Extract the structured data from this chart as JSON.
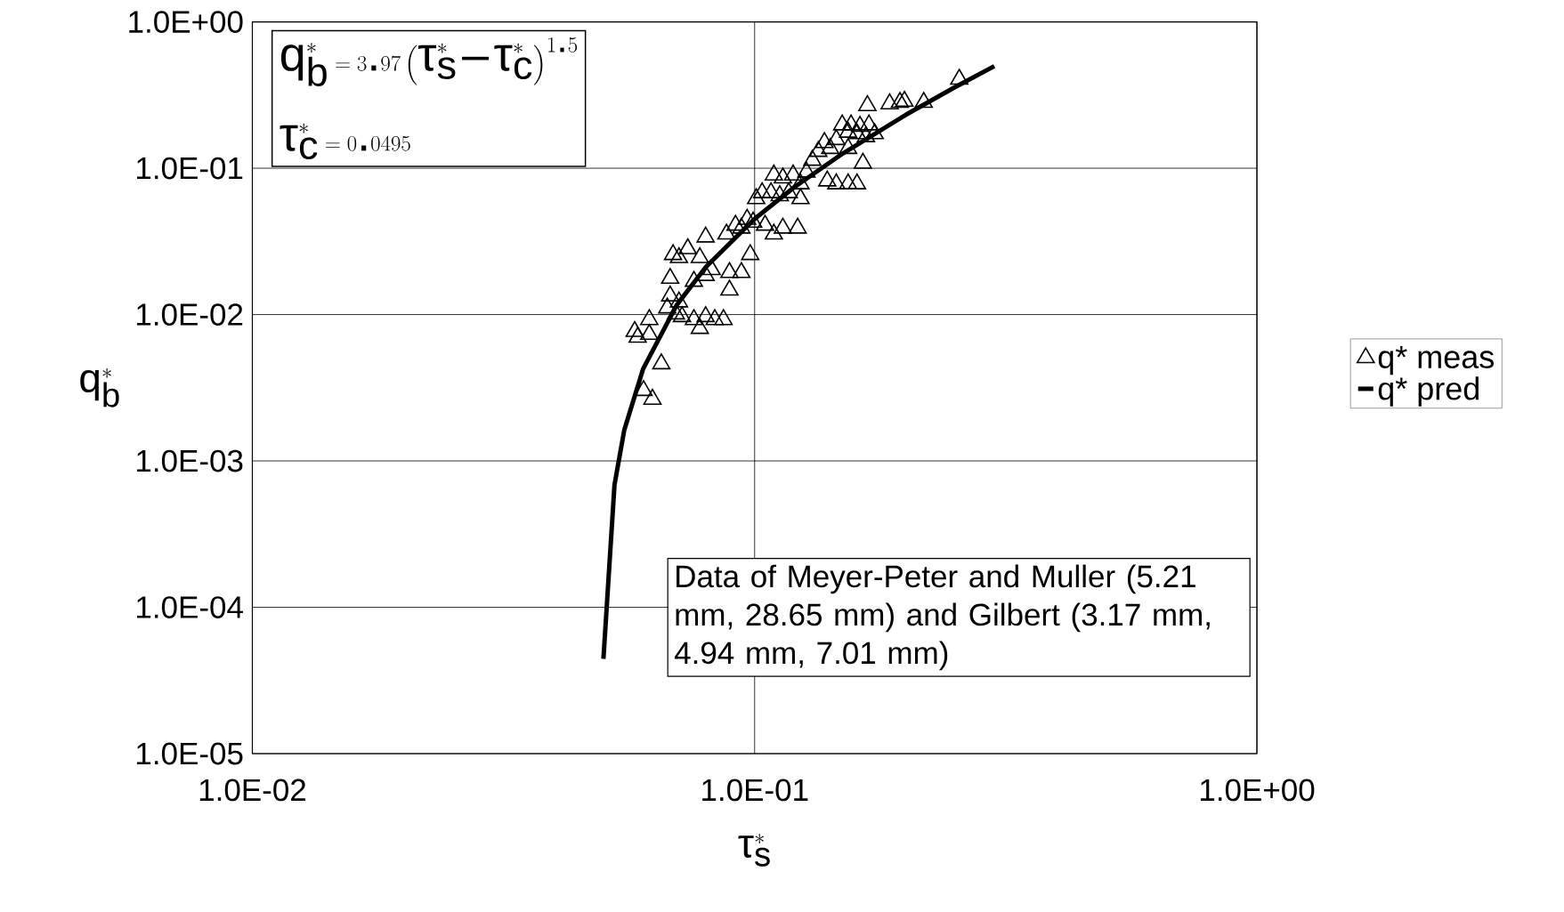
{
  "chart_data": {
    "type": "scatter",
    "log": "xy",
    "grid": true,
    "legend": "right",
    "xlabel": "\\text{τ}_s^*",
    "ylabel": "q_b^*",
    "xlim": [
      0.01,
      1
    ],
    "ylim": [
      1e-05,
      1
    ],
    "xticks": [
      {
        "value": 0.01,
        "label": "1.0E-02"
      },
      {
        "value": 0.1,
        "label": "1.0E-01"
      },
      {
        "value": 1,
        "label": "1.0E+00"
      }
    ],
    "yticks": [
      {
        "value": 1e-05,
        "label": "1.0E-05"
      },
      {
        "value": 0.0001,
        "label": "1.0E-04"
      },
      {
        "value": 0.001,
        "label": "1.0E-03"
      },
      {
        "value": 0.01,
        "label": "1.0E-02"
      },
      {
        "value": 0.1,
        "label": "1.0E-01"
      },
      {
        "value": 1,
        "label": "1.0E+00"
      }
    ],
    "annotations": [
      "q_b^* = 3.97\\left(\\text{τ}_s^* - \\text{τ}_c^*\\right)^{1.5}",
      "\\text{τ}_c^* = 0.0495",
      "Data of Meyer-Peter and Muller (5.21 mm,  28.65 mm) and Gilbert (3.17 mm, 4.94 mm, 7.01 mm)"
    ],
    "series": [
      {
        "name": "q* meas",
        "marker": "triangle",
        "color": "#000000",
        "x": [
          0.2555,
          0.2171,
          0.1987,
          0.1947,
          0.1857,
          0.1677,
          0.1494,
          0.1556,
          0.1621,
          0.1689,
          0.1535,
          0.1599,
          0.1666,
          0.1734,
          0.1377,
          0.1454,
          0.1414,
          0.1339,
          0.1303,
          0.1535,
          0.1643,
          0.1599,
          0.1535,
          0.1454,
          0.1395,
          0.1268,
          0.1092,
          0.1138,
          0.1193,
          0.1234,
          0.1035,
          0.1007,
          0.1078,
          0.1122,
          0.1169,
          0.1234,
          0.1218,
          0.1138,
          0.1092,
          0.1049,
          0.0993,
          0.0966,
          0.0916,
          0.0879,
          0.0941,
          0.0799,
          0.0736,
          0.0688,
          0.0707,
          0.0778,
          0.0821,
          0.0891,
          0.0941,
          0.098,
          0.0891,
          0.0679,
          0.0757,
          0.0799,
          0.0679,
          0.0707,
          0.067,
          0.0697,
          0.0757,
          0.0799,
          0.0833,
          0.0867,
          0.0778,
          0.0617,
          0.0577,
          0.0585,
          0.0617,
          0.0652,
          0.0601,
          0.0626,
          0.0717
        ],
        "values": [
          0.406,
          0.2821,
          0.287,
          0.2821,
          0.2754,
          0.2678,
          0.1979,
          0.1979,
          0.1934,
          0.1979,
          0.1762,
          0.1721,
          0.1643,
          0.1721,
          0.1498,
          0.1569,
          0.1365,
          0.1303,
          0.1133,
          0.1365,
          0.1082,
          0.0782,
          0.0782,
          0.0782,
          0.0819,
          0.0942,
          0.0899,
          0.0858,
          0.0899,
          0.0782,
          0.068,
          0.062,
          0.068,
          0.0649,
          0.068,
          0.062,
          0.039,
          0.039,
          0.0355,
          0.0408,
          0.0428,
          0.0448,
          0.0408,
          0.0355,
          0.039,
          0.0339,
          0.0282,
          0.0257,
          0.0245,
          0.0245,
          0.0203,
          0.0194,
          0.0194,
          0.0257,
          0.0147,
          0.0177,
          0.0169,
          0.0185,
          0.0134,
          0.0122,
          0.0111,
          0.0101,
          0.00924,
          0.00968,
          0.00924,
          0.00924,
          0.00804,
          0.00924,
          0.00767,
          0.007,
          0.00733,
          0.00461,
          0.00303,
          0.00264,
          0.00968
        ]
      },
      {
        "name": "q* pred",
        "type": "line",
        "marker": "none",
        "line_style": "solid",
        "color": "#000000",
        "x": [
          0.05,
          0.0526,
          0.055,
          0.06,
          0.07,
          0.08,
          0.1,
          0.12,
          0.15,
          0.2,
          0.25,
          0.3
        ],
        "values": [
          4.44e-05,
          0.000685,
          0.00162,
          0.00427,
          0.01165,
          0.02115,
          0.0451,
          0.0743,
          0.1265,
          0.2318,
          0.3564,
          0.498
        ]
      }
    ]
  }
}
